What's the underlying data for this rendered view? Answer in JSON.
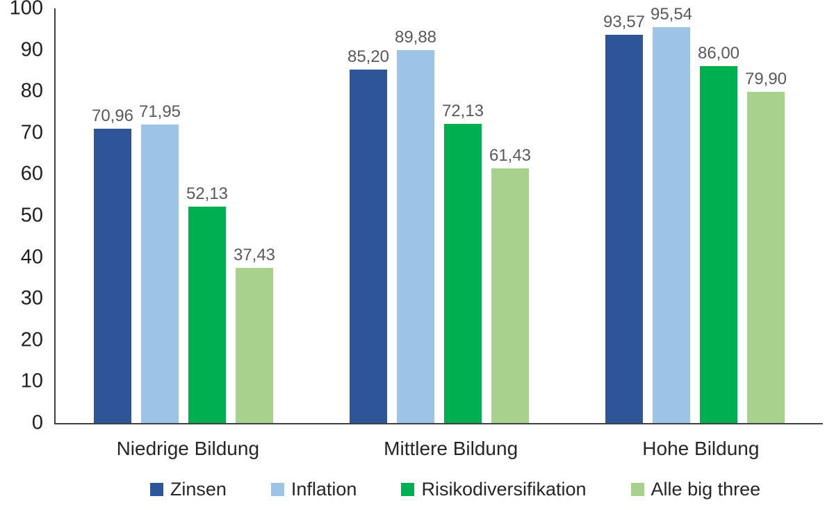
{
  "chart_data": {
    "type": "bar",
    "title": "",
    "categories": [
      "Niedrige Bildung",
      "Mittlere Bildung",
      "Hohe Bildung"
    ],
    "series": [
      {
        "name": "Zinsen",
        "color": "#2E5597",
        "values": [
          70.96,
          85.2,
          93.57
        ],
        "labels": [
          "70,96",
          "85,20",
          "93,57"
        ]
      },
      {
        "name": "Inflation",
        "color": "#9DC3E6",
        "values": [
          71.95,
          89.88,
          95.54
        ],
        "labels": [
          "71,95",
          "89,88",
          "95,54"
        ]
      },
      {
        "name": "Risikodiversifikation",
        "color": "#00B050",
        "values": [
          52.13,
          72.13,
          86.0
        ],
        "labels": [
          "52,13",
          "72,13",
          "86,00"
        ]
      },
      {
        "name": "Alle big three",
        "color": "#A9D18E",
        "values": [
          37.43,
          61.43,
          79.9
        ],
        "labels": [
          "37,43",
          "61,43",
          "79,90"
        ]
      }
    ],
    "y_axis": {
      "min": 0,
      "max": 100,
      "tick_step": 10,
      "ticks": [
        "0",
        "10",
        "20",
        "30",
        "40",
        "50",
        "60",
        "70",
        "80",
        "90",
        "100"
      ]
    },
    "grid": false,
    "legend_position": "bottom",
    "colors": {
      "axis_line": "#404040",
      "tick_label": "#1f1f1f",
      "data_label": "#595959",
      "category_label": "#262626",
      "legend_label": "#262626",
      "background": "#ffffff"
    }
  }
}
